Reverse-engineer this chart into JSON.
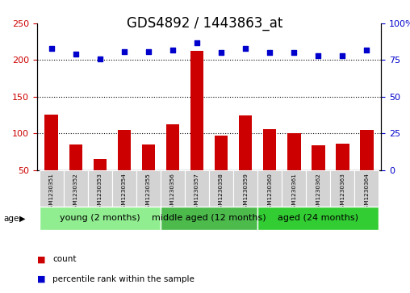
{
  "title": "GDS4892 / 1443863_at",
  "samples": [
    "GSM1230351",
    "GSM1230352",
    "GSM1230353",
    "GSM1230354",
    "GSM1230355",
    "GSM1230356",
    "GSM1230357",
    "GSM1230358",
    "GSM1230359",
    "GSM1230360",
    "GSM1230361",
    "GSM1230362",
    "GSM1230363",
    "GSM1230364"
  ],
  "count_values": [
    125,
    85,
    65,
    105,
    85,
    112,
    213,
    97,
    124,
    106,
    100,
    84,
    86,
    105
  ],
  "percentile_values": [
    83,
    79,
    76,
    81,
    81,
    82,
    87,
    80,
    83,
    80,
    80,
    78,
    78,
    82
  ],
  "bar_color": "#cc0000",
  "dot_color": "#0000cc",
  "ylim_left": [
    50,
    250
  ],
  "ylim_right": [
    0,
    100
  ],
  "yticks_left": [
    50,
    100,
    150,
    200,
    250
  ],
  "yticks_right": [
    0,
    25,
    50,
    75,
    100
  ],
  "groups": [
    {
      "label": "young (2 months)",
      "start": 0,
      "end": 5,
      "color": "#90ee90"
    },
    {
      "label": "middle aged (12 months)",
      "start": 5,
      "end": 9,
      "color": "#4cbb4c"
    },
    {
      "label": "aged (24 months)",
      "start": 9,
      "end": 14,
      "color": "#32cd32"
    }
  ],
  "age_label": "age",
  "legend_count_label": "count",
  "legend_pct_label": "percentile rank within the sample",
  "title_fontsize": 12,
  "tick_fontsize": 8,
  "group_fontsize": 8,
  "background_color": "#ffffff",
  "plot_bg_color": "#ffffff",
  "sample_bg_color": "#d3d3d3",
  "hgrid_vals": [
    100,
    150,
    200
  ]
}
